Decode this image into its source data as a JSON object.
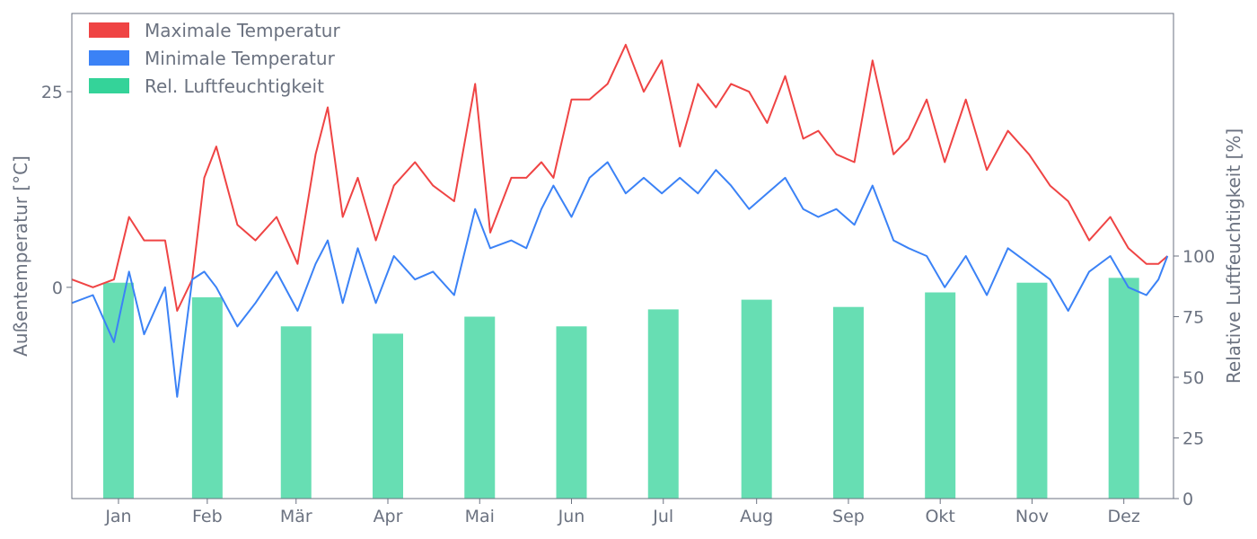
{
  "colors": {
    "tmax": "#ef4444",
    "tmin": "#3b82f6",
    "humidity": "#34d399",
    "axis": "#6b7280",
    "text": "#6b7280"
  },
  "chart_data": {
    "type": "line",
    "xlabel": "",
    "ylabel_left": "Außentemperatur [°C]",
    "ylabel_right": "Relative Luftfeuchtigkeit [%]",
    "ylim_left": [
      -27,
      35
    ],
    "ylim_right": [
      0,
      200
    ],
    "yticks_left": [
      0,
      25
    ],
    "yticks_right": [
      0,
      25,
      50,
      75,
      100
    ],
    "xlim_days": [
      0,
      366
    ],
    "grid": false,
    "legend_position": "top-left",
    "months": [
      "Jan",
      "Feb",
      "Mär",
      "Apr",
      "Mai",
      "Jun",
      "Jul",
      "Aug",
      "Sep",
      "Okt",
      "Nov",
      "Dez"
    ],
    "legend": [
      {
        "name": "Maximale Temperatur",
        "color": "#ef4444"
      },
      {
        "name": "Minimale Temperatur",
        "color": "#3b82f6"
      },
      {
        "name": "Rel. Luftfeuchtigkeit",
        "color": "#34d399"
      }
    ],
    "humidity": {
      "name": "Rel. Luftfeuchtigkeit",
      "categories": [
        "Jan",
        "Feb",
        "Mär",
        "Apr",
        "Mai",
        "Jun",
        "Jul",
        "Aug",
        "Sep",
        "Okt",
        "Nov",
        "Dez"
      ],
      "values": [
        89,
        83,
        71,
        68,
        75,
        71,
        78,
        82,
        79,
        85,
        89,
        91
      ]
    },
    "tmax": {
      "name": "Maximale Temperatur",
      "x": [
        "2023-01-01",
        "2023-01-08",
        "2023-01-15",
        "2023-01-20",
        "2023-01-25",
        "2023-02-01",
        "2023-02-05",
        "2023-02-10",
        "2023-02-14",
        "2023-02-18",
        "2023-02-25",
        "2023-03-03",
        "2023-03-10",
        "2023-03-17",
        "2023-03-23",
        "2023-03-27",
        "2023-04-01",
        "2023-04-06",
        "2023-04-12",
        "2023-04-18",
        "2023-04-25",
        "2023-05-01",
        "2023-05-08",
        "2023-05-15",
        "2023-05-20",
        "2023-05-27",
        "2023-06-01",
        "2023-06-06",
        "2023-06-10",
        "2023-06-16",
        "2023-06-22",
        "2023-06-28",
        "2023-07-04",
        "2023-07-10",
        "2023-07-16",
        "2023-07-22",
        "2023-07-28",
        "2023-08-03",
        "2023-08-08",
        "2023-08-14",
        "2023-08-20",
        "2023-08-26",
        "2023-09-01",
        "2023-09-06",
        "2023-09-12",
        "2023-09-18",
        "2023-09-24",
        "2023-10-01",
        "2023-10-06",
        "2023-10-12",
        "2023-10-18",
        "2023-10-25",
        "2023-11-01",
        "2023-11-08",
        "2023-11-15",
        "2023-11-22",
        "2023-11-28",
        "2023-12-05",
        "2023-12-12",
        "2023-12-18",
        "2023-12-24",
        "2023-12-28",
        "2023-12-31"
      ],
      "values": [
        1,
        0,
        1,
        9,
        6,
        6,
        -3,
        1,
        14,
        18,
        8,
        6,
        9,
        3,
        17,
        23,
        9,
        14,
        6,
        13,
        16,
        13,
        11,
        26,
        7,
        14,
        14,
        16,
        14,
        24,
        24,
        26,
        31,
        25,
        29,
        18,
        26,
        23,
        26,
        25,
        21,
        27,
        19,
        20,
        17,
        16,
        29,
        17,
        19,
        24,
        16,
        24,
        15,
        20,
        17,
        13,
        11,
        6,
        9,
        5,
        3,
        3,
        4
      ]
    },
    "tmin": {
      "name": "Minimale Temperatur",
      "x": [
        "2023-01-01",
        "2023-01-08",
        "2023-01-15",
        "2023-01-20",
        "2023-01-25",
        "2023-02-01",
        "2023-02-05",
        "2023-02-10",
        "2023-02-14",
        "2023-02-18",
        "2023-02-25",
        "2023-03-03",
        "2023-03-10",
        "2023-03-17",
        "2023-03-23",
        "2023-03-27",
        "2023-04-01",
        "2023-04-06",
        "2023-04-12",
        "2023-04-18",
        "2023-04-25",
        "2023-05-01",
        "2023-05-08",
        "2023-05-15",
        "2023-05-20",
        "2023-05-27",
        "2023-06-01",
        "2023-06-06",
        "2023-06-10",
        "2023-06-16",
        "2023-06-22",
        "2023-06-28",
        "2023-07-04",
        "2023-07-10",
        "2023-07-16",
        "2023-07-22",
        "2023-07-28",
        "2023-08-03",
        "2023-08-08",
        "2023-08-14",
        "2023-08-20",
        "2023-08-26",
        "2023-09-01",
        "2023-09-06",
        "2023-09-12",
        "2023-09-18",
        "2023-09-24",
        "2023-10-01",
        "2023-10-06",
        "2023-10-12",
        "2023-10-18",
        "2023-10-25",
        "2023-11-01",
        "2023-11-08",
        "2023-11-15",
        "2023-11-22",
        "2023-11-28",
        "2023-12-05",
        "2023-12-12",
        "2023-12-18",
        "2023-12-24",
        "2023-12-28",
        "2023-12-31"
      ],
      "values": [
        -2,
        -1,
        -7,
        2,
        -6,
        0,
        -14,
        1,
        2,
        0,
        -5,
        -2,
        2,
        -3,
        3,
        6,
        -2,
        5,
        -2,
        4,
        1,
        2,
        -1,
        10,
        5,
        6,
        5,
        10,
        13,
        9,
        14,
        16,
        12,
        14,
        12,
        14,
        12,
        15,
        13,
        10,
        12,
        14,
        10,
        9,
        10,
        8,
        13,
        6,
        5,
        4,
        0,
        4,
        -1,
        5,
        3,
        1,
        -3,
        2,
        4,
        0,
        -1,
        1,
        4
      ]
    }
  }
}
